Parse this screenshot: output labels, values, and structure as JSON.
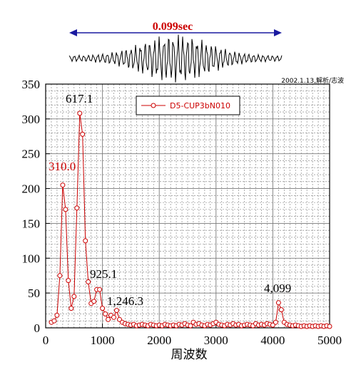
{
  "top": {
    "duration_label": "0.099sec",
    "credit": "2002.1.13,解析/志波"
  },
  "colors": {
    "series": "#cc0000",
    "grid": "#7a7a7a",
    "arrow": "#1a1aa0",
    "duration_text": "#cc0000"
  },
  "chart_data": {
    "type": "line",
    "title": "",
    "xlabel": "周波数",
    "ylabel": "",
    "xlim": [
      0,
      5000
    ],
    "ylim": [
      0,
      350
    ],
    "x_ticks": [
      0,
      1000,
      2000,
      3000,
      4000,
      5000
    ],
    "y_ticks": [
      0,
      50,
      100,
      150,
      200,
      250,
      300,
      350
    ],
    "grid": true,
    "legend_position": "top-center",
    "series": [
      {
        "name": "D5-CUP3bN010",
        "marker": "open-circle",
        "x": [
          100,
          150,
          200,
          250,
          300,
          350,
          400,
          450,
          500,
          550,
          600,
          650,
          700,
          750,
          800,
          850,
          900,
          950,
          1000,
          1050,
          1100,
          1150,
          1200,
          1250,
          1300,
          1350,
          1400,
          1450,
          1500,
          1550,
          1600,
          1650,
          1700,
          1750,
          1800,
          1850,
          1900,
          1950,
          2000,
          2050,
          2100,
          2150,
          2200,
          2250,
          2300,
          2350,
          2400,
          2450,
          2500,
          2550,
          2600,
          2650,
          2700,
          2750,
          2800,
          2850,
          2900,
          2950,
          3000,
          3050,
          3100,
          3150,
          3200,
          3250,
          3300,
          3350,
          3400,
          3450,
          3500,
          3550,
          3600,
          3650,
          3700,
          3750,
          3800,
          3850,
          3900,
          3950,
          4000,
          4050,
          4100,
          4150,
          4200,
          4250,
          4300,
          4350,
          4400,
          4450,
          4500,
          4550,
          4600,
          4650,
          4700,
          4750,
          4800,
          4850,
          4900,
          4950,
          5000
        ],
        "y": [
          8,
          10,
          18,
          75,
          205,
          170,
          68,
          28,
          45,
          172,
          308,
          278,
          125,
          66,
          35,
          38,
          55,
          55,
          28,
          20,
          12,
          18,
          15,
          25,
          12,
          8,
          6,
          5,
          4,
          5,
          3,
          4,
          5,
          4,
          3,
          5,
          4,
          3,
          4,
          3,
          5,
          4,
          3,
          4,
          3,
          5,
          4,
          6,
          4,
          3,
          8,
          5,
          6,
          4,
          3,
          5,
          4,
          6,
          8,
          5,
          4,
          3,
          5,
          4,
          6,
          4,
          5,
          3,
          4,
          5,
          4,
          3,
          6,
          4,
          5,
          4,
          6,
          5,
          4,
          8,
          36,
          26,
          8,
          5,
          4,
          3,
          4,
          3,
          2,
          3,
          2,
          3,
          2,
          3,
          2,
          3,
          2,
          3,
          2
        ]
      }
    ],
    "annotations": [
      {
        "text": "617.1",
        "color": "#000000"
      },
      {
        "text": "310.0",
        "color": "#cc0000"
      },
      {
        "text": "925.1",
        "color": "#000000"
      },
      {
        "text": "1,246.3",
        "color": "#000000"
      },
      {
        "text": "4,099",
        "color": "#000000"
      }
    ]
  }
}
